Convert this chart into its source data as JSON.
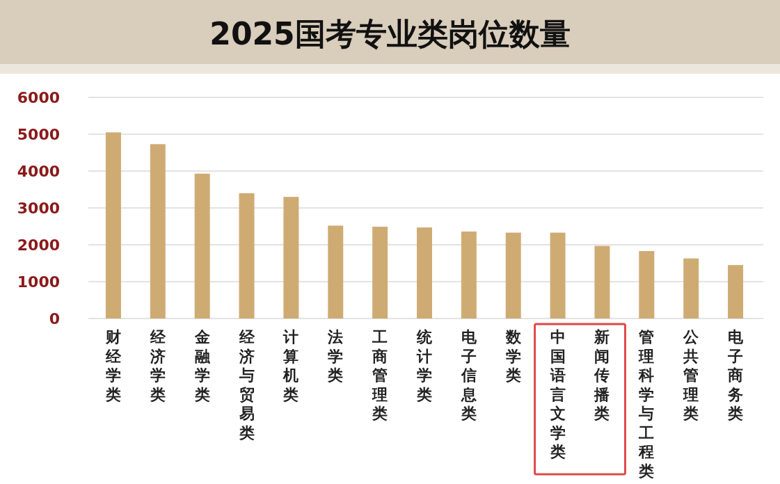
{
  "chart_data": {
    "type": "bar",
    "title": "2025国考专业类岗位数量",
    "categories": [
      "财经学类",
      "经济学类",
      "金融学类",
      "经济与贸易类",
      "计算机类",
      "法学类",
      "工商管理类",
      "统计学类",
      "电子信息类",
      "数学类",
      "中国语言文学类",
      "新闻传播类",
      "管理科学与工程类",
      "公共管理类",
      "电子商务类"
    ],
    "values": [
      5050,
      4730,
      3930,
      3400,
      3300,
      2520,
      2490,
      2470,
      2360,
      2330,
      2330,
      1970,
      1830,
      1630,
      1450
    ],
    "color": "#cfab74",
    "ylim": [
      0,
      6000
    ],
    "yticks": [
      0,
      1000,
      2000,
      3000,
      4000,
      5000,
      6000
    ],
    "grid": "y"
  }
}
